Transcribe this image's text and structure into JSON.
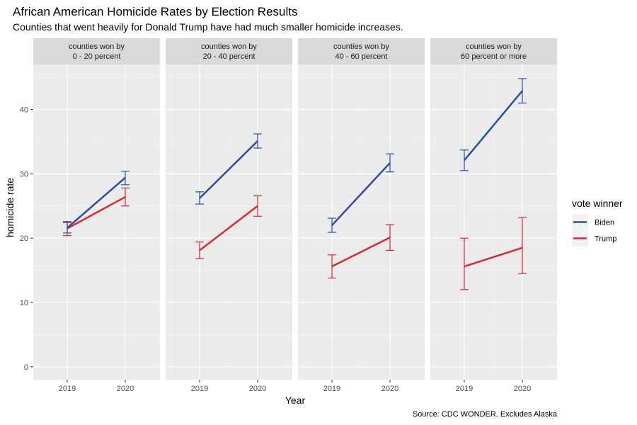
{
  "chart_data": {
    "type": "line",
    "title": "African American Homicide Rates by Election Results",
    "subtitle": "Counties that went heavily for Donald Trump have had much smaller homicide increases.",
    "caption": "Source: CDC WONDER. Excludes Alaska",
    "xlabel": "Year",
    "ylabel": "homicide rate",
    "x": [
      "2019",
      "2020"
    ],
    "ylim": [
      -2,
      47
    ],
    "yticks": [
      0,
      10,
      20,
      30,
      40
    ],
    "grid": true,
    "legend": {
      "title": "vote winner",
      "placement": "right",
      "entries": [
        "Biden",
        "Trump"
      ]
    },
    "colors": {
      "Biden": "#2b4f9e",
      "Trump": "#d42a38"
    },
    "panels": [
      {
        "strip": [
          "counties won by",
          "0 - 20 percent"
        ],
        "series": [
          {
            "name": "Biden",
            "values": [
              21.6,
              29.4
            ],
            "lower": [
              20.8,
              28.3
            ],
            "upper": [
              22.4,
              30.4
            ]
          },
          {
            "name": "Trump",
            "values": [
              21.5,
              26.4
            ],
            "lower": [
              20.4,
              25.0
            ],
            "upper": [
              22.6,
              27.8
            ]
          }
        ]
      },
      {
        "strip": [
          "counties won by",
          "20 - 40 percent"
        ],
        "series": [
          {
            "name": "Biden",
            "values": [
              26.2,
              35.1
            ],
            "lower": [
              25.3,
              34.0
            ],
            "upper": [
              27.2,
              36.2
            ]
          },
          {
            "name": "Trump",
            "values": [
              18.1,
              25.0
            ],
            "lower": [
              16.8,
              23.4
            ],
            "upper": [
              19.4,
              26.6
            ]
          }
        ]
      },
      {
        "strip": [
          "counties won by",
          "40 - 60 percent"
        ],
        "series": [
          {
            "name": "Biden",
            "values": [
              22.0,
              31.7
            ],
            "lower": [
              20.9,
              30.3
            ],
            "upper": [
              23.1,
              33.1
            ]
          },
          {
            "name": "Trump",
            "values": [
              15.6,
              20.1
            ],
            "lower": [
              13.8,
              18.1
            ],
            "upper": [
              17.4,
              22.1
            ]
          }
        ]
      },
      {
        "strip": [
          "counties won by",
          "60 percent or more"
        ],
        "series": [
          {
            "name": "Biden",
            "values": [
              32.1,
              42.9
            ],
            "lower": [
              30.5,
              41.0
            ],
            "upper": [
              33.7,
              44.8
            ]
          },
          {
            "name": "Trump",
            "values": [
              15.6,
              18.5
            ],
            "lower": [
              12.0,
              14.5
            ],
            "upper": [
              20.0,
              23.2
            ]
          }
        ]
      }
    ]
  }
}
